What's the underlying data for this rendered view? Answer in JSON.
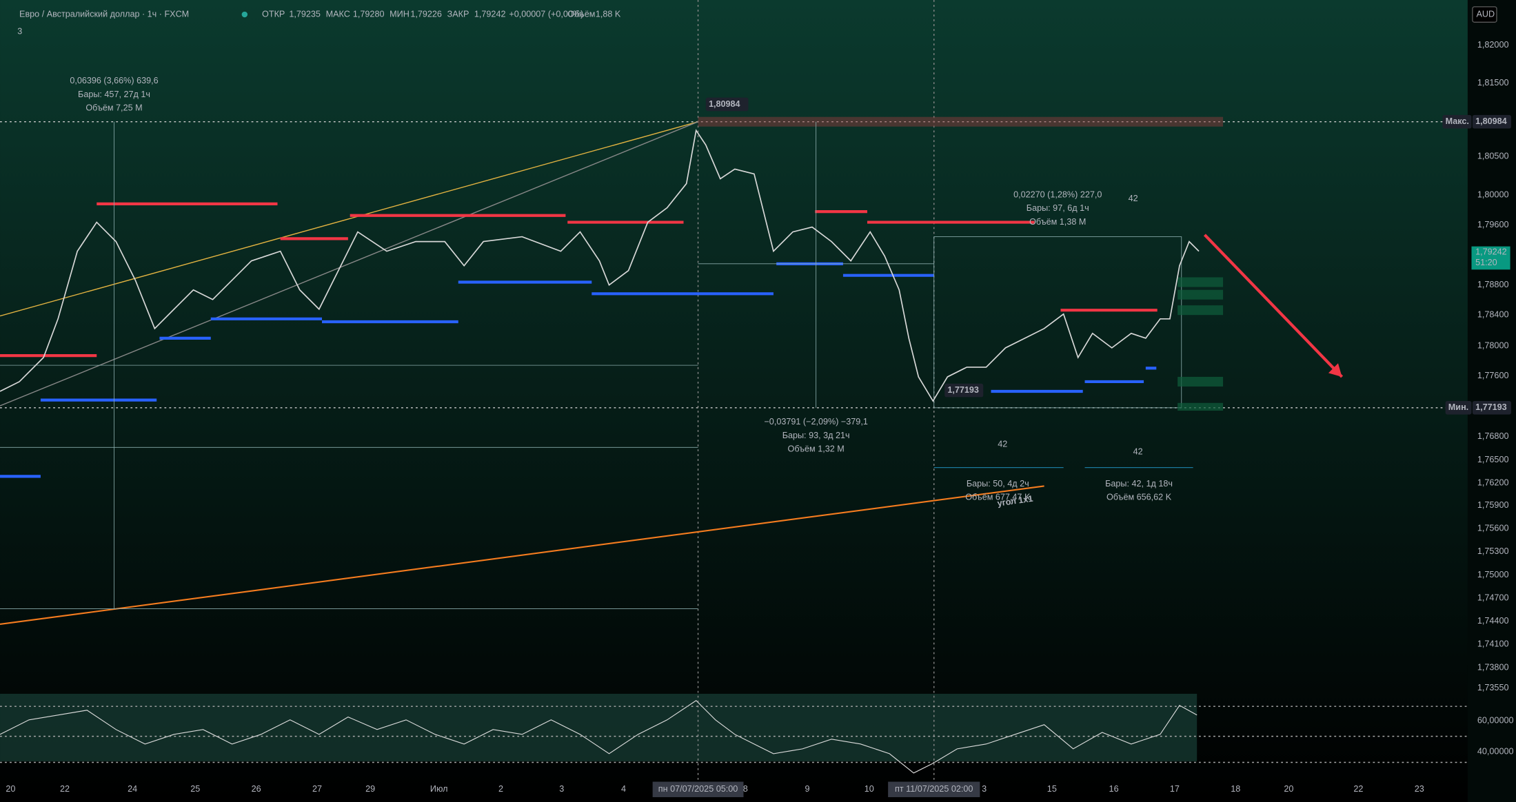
{
  "header": {
    "symbol": "Евро / Австралийский доллар · 1ч · FXCM",
    "ohlc": [
      {
        "label": "ОТКР",
        "value": "1,79235"
      },
      {
        "label": "МАКС",
        "value": "1,79280"
      },
      {
        "label": "МИН",
        "value": "1,79226"
      },
      {
        "label": "ЗАКР",
        "value": "1,79242"
      }
    ],
    "change": "+0,00007 (+0,00%)",
    "volume_label": "Объём",
    "volume": "1,88 K",
    "indicators": "3",
    "currency": "AUD"
  },
  "price_axis": [
    "1,82000",
    "1,81500",
    "1,80500",
    "1,80000",
    "1,79600",
    "1,78800",
    "1,78400",
    "1,78000",
    "1,77600",
    "1,76800",
    "1,76500",
    "1,76200",
    "1,75900",
    "1,75600",
    "1,75300",
    "1,75000",
    "1,74700",
    "1,74400",
    "1,74100",
    "1,73800",
    "1,73550"
  ],
  "price_tags": {
    "max_label": "Макс.",
    "max": "1,80984",
    "last": "1,79242",
    "countdown": "51:20",
    "min_label": "Мин.",
    "min": "1,77193"
  },
  "indicator_axis": [
    "60,00000",
    "40,00000"
  ],
  "time_axis": [
    "20",
    "22",
    "24",
    "25",
    "26",
    "27",
    "29",
    "Июл",
    "2",
    "3",
    "4",
    "8",
    "9",
    "10",
    "3",
    "15",
    "16",
    "17",
    "18",
    "20",
    "22",
    "23"
  ],
  "crosshair_dates": [
    "пн 07/07/2025  05:00",
    "пт 11/07/2025  02:00"
  ],
  "annotations": {
    "range1": [
      "0,06396 (3,66%) 639,6",
      "Бары: 457, 27д 1ч",
      "Объём 7,25 M"
    ],
    "high_tag": "1,80984",
    "low_tag": "1,77193",
    "range2": [
      "0,02270 (1,28%) 227,0",
      "Бары: 97, 6д 1ч",
      "Объём 1,38 M"
    ],
    "range3": [
      "−0,03791 (−2,09%) −379,1",
      "Бары: 93, 3д 21ч",
      "Объём 1,32 M"
    ],
    "range4": [
      "Бары: 50, 4д 2ч",
      "Объём 677,47 K"
    ],
    "range5": [
      "Бары: 42, 1д 18ч",
      "Объём 656,62 K"
    ],
    "counts": [
      "42",
      "42",
      "42"
    ],
    "angle": "угол 1x1"
  }
}
